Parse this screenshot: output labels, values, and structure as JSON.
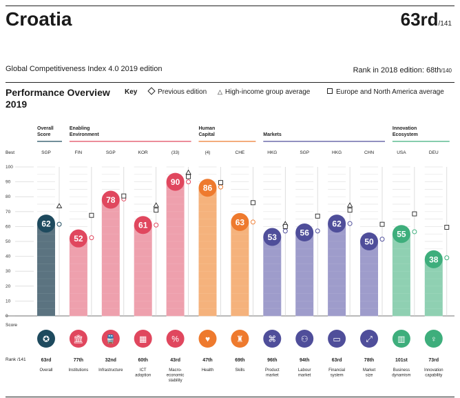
{
  "header": {
    "country": "Croatia",
    "rank": "63rd",
    "rank_total": "/141",
    "edition": "Global Competitiveness Index 4.0 2019 edition",
    "rank_2018_label": "Rank in 2018 edition: 68th",
    "rank_2018_total": "/140"
  },
  "overview": {
    "title_line1": "Performance Overview",
    "title_line2": "2019"
  },
  "key": {
    "label": "Key",
    "items": [
      "Previous edition",
      "High-income group average",
      "Europe and North America average"
    ]
  },
  "colors": {
    "overall": "#1e4a5e",
    "enabling": "#e0475e",
    "human": "#ee7a2e",
    "markets": "#4f4e9a",
    "innovation": "#3eae7c"
  },
  "chart_data": {
    "type": "bar",
    "y_axis_labels": [
      "100",
      "90",
      "80",
      "70",
      "60",
      "50",
      "40",
      "30",
      "20",
      "10",
      "0"
    ],
    "row_labels": {
      "best": "Best",
      "score": "Score",
      "rank": "Rank /141"
    },
    "ylim": [
      0,
      100
    ],
    "groups": [
      {
        "name_lines": [
          "Overall",
          "Score"
        ],
        "color": "overall",
        "pillars": [
          0
        ]
      },
      {
        "name_lines": [
          "Enabling",
          "Environment"
        ],
        "color": "enabling",
        "pillars": [
          1,
          2,
          3,
          4
        ]
      },
      {
        "name_lines": [
          "Human",
          "Capital"
        ],
        "color": "human",
        "pillars": [
          5,
          6
        ]
      },
      {
        "name_lines": [
          "Markets"
        ],
        "color": "markets",
        "pillars": [
          7,
          8,
          9,
          10
        ]
      },
      {
        "name_lines": [
          "Innovation",
          "Ecosystem"
        ],
        "color": "innovation",
        "pillars": [
          11,
          12
        ]
      }
    ],
    "pillars": [
      {
        "label_lines": [
          "Overall"
        ],
        "best": "SGP",
        "score": 62,
        "rank": "63rd",
        "previous": 61.5,
        "high_income": 73.5,
        "europe_na": null,
        "group": "overall",
        "icon": "medal-icon",
        "glyph": "✪"
      },
      {
        "label_lines": [
          "Institutions"
        ],
        "best": "FIN",
        "score": 52,
        "rank": "77th",
        "previous": 52.5,
        "high_income": null,
        "europe_na": 67.5,
        "group": "enabling",
        "icon": "institution-icon",
        "glyph": "🏛"
      },
      {
        "label_lines": [
          "Infrastructure"
        ],
        "best": "SGP",
        "score": 78,
        "rank": "32nd",
        "previous": 78.5,
        "high_income": null,
        "europe_na": 80.5,
        "group": "enabling",
        "icon": "train-icon",
        "glyph": "🚆"
      },
      {
        "label_lines": [
          "ICT",
          "adoption"
        ],
        "best": "KOR",
        "score": 61,
        "rank": "60th",
        "previous": 61,
        "high_income": 74,
        "europe_na": 71,
        "group": "enabling",
        "icon": "chip-icon",
        "glyph": "▦"
      },
      {
        "label_lines": [
          "Macro-",
          "economic",
          "stability"
        ],
        "best": "(33)",
        "score": 90,
        "rank": "43rd",
        "previous": 90,
        "high_income": 96,
        "europe_na": 93.5,
        "group": "enabling",
        "icon": "percent-icon",
        "glyph": "%"
      },
      {
        "label_lines": [
          "Health"
        ],
        "best": "(4)",
        "score": 86,
        "rank": "47th",
        "previous": 86.5,
        "high_income": null,
        "europe_na": 89.5,
        "group": "human",
        "icon": "heart-icon",
        "glyph": "♥"
      },
      {
        "label_lines": [
          "Skills"
        ],
        "best": "CHE",
        "score": 63,
        "rank": "69th",
        "previous": 63,
        "high_income": null,
        "europe_na": 76,
        "group": "human",
        "icon": "graduate-icon",
        "glyph": "♜"
      },
      {
        "label_lines": [
          "Product",
          "market"
        ],
        "best": "HKG",
        "score": 53,
        "rank": "96th",
        "previous": 57,
        "high_income": 61.5,
        "europe_na": 60,
        "group": "markets",
        "icon": "tag-icon",
        "glyph": "⌘"
      },
      {
        "label_lines": [
          "Labour",
          "market"
        ],
        "best": "SGP",
        "score": 56,
        "rank": "94th",
        "previous": 57,
        "high_income": null,
        "europe_na": 67,
        "group": "markets",
        "icon": "people-icon",
        "glyph": "⚇"
      },
      {
        "label_lines": [
          "Financial",
          "system"
        ],
        "best": "HKG",
        "score": 62,
        "rank": "63rd",
        "previous": 62,
        "high_income": 74,
        "europe_na": 71,
        "group": "markets",
        "icon": "card-icon",
        "glyph": "▭"
      },
      {
        "label_lines": [
          "Market",
          "size"
        ],
        "best": "CHN",
        "score": 50,
        "rank": "78th",
        "previous": 51.5,
        "high_income": null,
        "europe_na": 61.5,
        "group": "markets",
        "icon": "expand-icon",
        "glyph": "⤢"
      },
      {
        "label_lines": [
          "Business",
          "dynamism"
        ],
        "best": "USA",
        "score": 55,
        "rank": "101st",
        "previous": 56.5,
        "high_income": null,
        "europe_na": 68.5,
        "group": "innovation",
        "icon": "building-icon",
        "glyph": "▥"
      },
      {
        "label_lines": [
          "Innovation",
          "capability"
        ],
        "best": "DEU",
        "score": 38,
        "rank": "73rd",
        "previous": 39,
        "high_income": null,
        "europe_na": 59.5,
        "group": "innovation",
        "icon": "lightbulb-icon",
        "glyph": "♀"
      }
    ]
  }
}
